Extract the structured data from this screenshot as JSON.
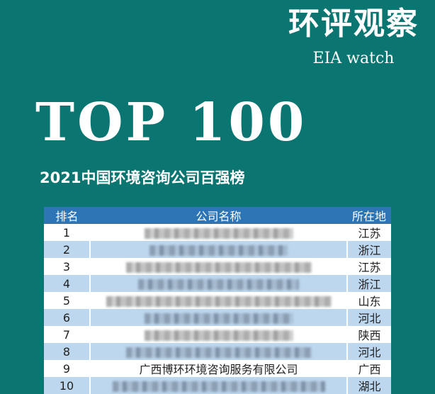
{
  "brand": {
    "title_cn": "环评观察",
    "title_en": "EIA watch"
  },
  "headline": "TOP 100",
  "subtitle": "2021中国环境咨询公司百强榜",
  "colors": {
    "background": "#0b7671",
    "header": "#2e75b6",
    "alt_row": "#bdd7ee"
  },
  "table": {
    "headers": [
      "排名",
      "公司名称",
      "所在地"
    ],
    "rows": [
      {
        "rank": "1",
        "name": null,
        "name_blurred": true,
        "location": "江苏"
      },
      {
        "rank": "2",
        "name": null,
        "name_blurred": true,
        "location": "浙江"
      },
      {
        "rank": "3",
        "name": null,
        "name_blurred": true,
        "location": "江苏"
      },
      {
        "rank": "4",
        "name": null,
        "name_blurred": true,
        "location": "浙江"
      },
      {
        "rank": "5",
        "name": null,
        "name_blurred": true,
        "location": "山东"
      },
      {
        "rank": "6",
        "name": null,
        "name_blurred": true,
        "location": "河北"
      },
      {
        "rank": "7",
        "name": null,
        "name_blurred": true,
        "location": "陕西"
      },
      {
        "rank": "8",
        "name": null,
        "name_blurred": true,
        "location": "河北"
      },
      {
        "rank": "9",
        "name": "广西博环环境咨询服务有限公司",
        "name_blurred": false,
        "location": "广西"
      },
      {
        "rank": "10",
        "name": null,
        "name_blurred": true,
        "location": "湖北"
      }
    ]
  }
}
